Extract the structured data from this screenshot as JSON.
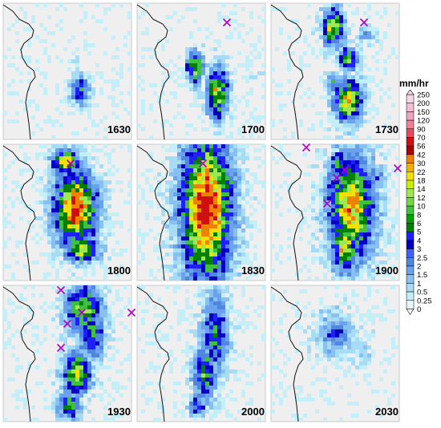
{
  "panels": [
    {
      "time": "1630"
    },
    {
      "time": "1700"
    },
    {
      "time": "1730"
    },
    {
      "time": "1800"
    },
    {
      "time": "1830"
    },
    {
      "time": "1900"
    },
    {
      "time": "1930"
    },
    {
      "time": "2000"
    },
    {
      "time": "2030"
    }
  ],
  "colorbar": {
    "unit": "mm/hr",
    "levels": [
      "250",
      "200",
      "150",
      "120",
      "90",
      "70",
      "56",
      "42",
      "30",
      "22",
      "18",
      "14",
      "12",
      "10",
      "8",
      "6",
      "5",
      "4",
      "3",
      "2.5",
      "2",
      "1.5",
      "1",
      "0.5",
      "0.25",
      "0"
    ],
    "colors": [
      "#f7d6e6",
      "#f2bcd2",
      "#f0a2bd",
      "#f07f98",
      "#e84a5f",
      "#d01010",
      "#b00000",
      "#f08000",
      "#f2b000",
      "#f5e000",
      "#c8f000",
      "#a0e850",
      "#70d840",
      "#40c040",
      "#00a000",
      "#008000",
      "#2020ff",
      "#0000c0",
      "#4060ff",
      "#4e86e0",
      "#6aa2ee",
      "#88c0f2",
      "#a6dcf6",
      "#c4eef8",
      "#e4f8fc"
    ]
  },
  "markers": {
    "symbol": "×",
    "color": "#b000c8"
  }
}
